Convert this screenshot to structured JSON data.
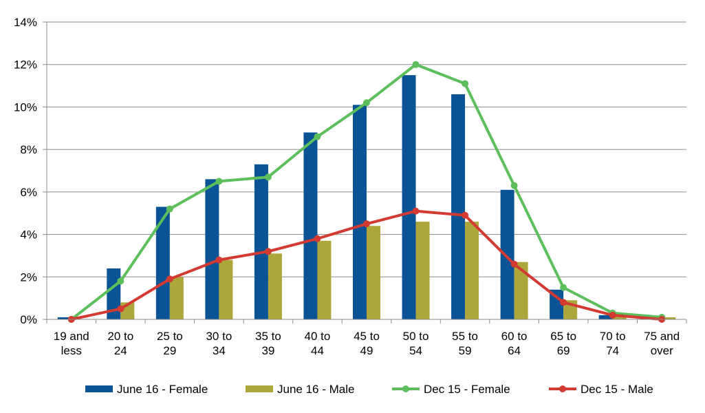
{
  "chart_data": {
    "type": "bar",
    "title": "",
    "xlabel": "",
    "ylabel": "",
    "ylim": [
      0,
      14
    ],
    "y_ticks": [
      "0%",
      "2%",
      "4%",
      "6%",
      "8%",
      "10%",
      "12%",
      "14%"
    ],
    "y_tick_values": [
      0,
      2,
      4,
      6,
      8,
      10,
      12,
      14
    ],
    "grid": true,
    "legend_position": "bottom",
    "categories": [
      [
        "19 and",
        "less"
      ],
      [
        "20 to",
        "24"
      ],
      [
        "25 to",
        "29"
      ],
      [
        "30 to",
        "34"
      ],
      [
        "35 to",
        "39"
      ],
      [
        "40 to",
        "44"
      ],
      [
        "45 to",
        "49"
      ],
      [
        "50 to",
        "54"
      ],
      [
        "55 to",
        "59"
      ],
      [
        "60 to",
        "64"
      ],
      [
        "65 to",
        "69"
      ],
      [
        "70 to",
        "74"
      ],
      [
        "75 and",
        "over"
      ]
    ],
    "series": [
      {
        "name": "June 16 - Female",
        "kind": "bar",
        "color": "#0a5496",
        "values": [
          0.1,
          2.4,
          5.3,
          6.6,
          7.3,
          8.8,
          10.1,
          11.5,
          10.6,
          6.1,
          1.4,
          0.2,
          0.05
        ]
      },
      {
        "name": "June 16 - Male",
        "kind": "bar",
        "color": "#ada63a",
        "values": [
          0.0,
          0.8,
          2.0,
          2.8,
          3.1,
          3.7,
          4.4,
          4.6,
          4.6,
          2.7,
          0.9,
          0.2,
          0.1
        ]
      },
      {
        "name": "Dec 15 - Female",
        "kind": "line",
        "color": "#5cbf5c",
        "values": [
          0.0,
          1.8,
          5.2,
          6.5,
          6.7,
          8.6,
          10.2,
          12.0,
          11.1,
          6.3,
          1.5,
          0.3,
          0.1
        ]
      },
      {
        "name": "Dec 15 - Male",
        "kind": "line",
        "color": "#d23a32",
        "values": [
          0.0,
          0.5,
          1.9,
          2.8,
          3.2,
          3.8,
          4.5,
          5.1,
          4.9,
          2.6,
          0.8,
          0.2,
          0.0
        ]
      }
    ]
  }
}
